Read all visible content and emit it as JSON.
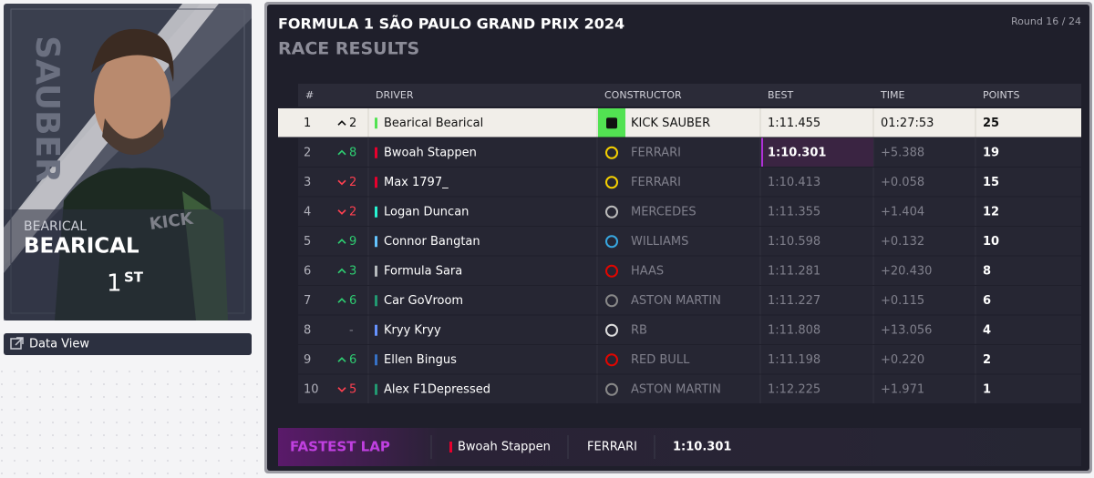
{
  "card": {
    "team": "SAUBER",
    "first_name": "BEARICAL",
    "last_name": "BEARICAL",
    "position": "1",
    "position_suffix": "ST"
  },
  "button": "Data View",
  "header": {
    "title": "FORMULA 1 SÃO PAULO GRAND PRIX 2024",
    "subtitle": "RACE RESULTS",
    "round": "Round 16 / 24"
  },
  "table": {
    "columns": [
      "#",
      "DRIVER",
      "CONSTRUCTOR",
      "BEST",
      "TIME",
      "POINTS"
    ],
    "rows": [
      {
        "pos": 1,
        "change": "2",
        "direction": "up",
        "driver": "Bearical Bearical",
        "team_color": "#52e252",
        "constructor": "KICK SAUBER",
        "logo_color": "#52e252",
        "best": "1:11.455",
        "time": "01:27:53",
        "points": 25,
        "player": true
      },
      {
        "pos": 2,
        "change": "8",
        "direction": "up",
        "driver": "Bwoah Stappen",
        "team_color": "#e8002d",
        "constructor": "FERRARI",
        "logo_color": "#f5d000",
        "best": "1:10.301",
        "time": "+5.388",
        "points": 19,
        "fastest": true
      },
      {
        "pos": 3,
        "change": "2",
        "direction": "down",
        "driver": "Max 1797_",
        "team_color": "#e8002d",
        "constructor": "FERRARI",
        "logo_color": "#f5d000",
        "best": "1:10.413",
        "time": "+0.058",
        "points": 15
      },
      {
        "pos": 4,
        "change": "2",
        "direction": "down",
        "driver": "Logan Duncan",
        "team_color": "#27f4d2",
        "constructor": "MERCEDES",
        "logo_color": "#bbbbbb",
        "best": "1:11.355",
        "time": "+1.404",
        "points": 12
      },
      {
        "pos": 5,
        "change": "9",
        "direction": "up",
        "driver": "Connor Bangtan",
        "team_color": "#64c4ff",
        "constructor": "WILLIAMS",
        "logo_color": "#37a7e0",
        "best": "1:10.598",
        "time": "+0.132",
        "points": 10
      },
      {
        "pos": 6,
        "change": "3",
        "direction": "up",
        "driver": "Formula Sara",
        "team_color": "#b6babd",
        "constructor": "HAAS",
        "logo_color": "#e10600",
        "best": "1:11.281",
        "time": "+20.430",
        "points": 8
      },
      {
        "pos": 7,
        "change": "6",
        "direction": "up",
        "driver": "Car GoVroom",
        "team_color": "#229971",
        "constructor": "ASTON MARTIN",
        "logo_color": "#888888",
        "best": "1:11.227",
        "time": "+0.115",
        "points": 6
      },
      {
        "pos": 8,
        "change": "-",
        "direction": "none",
        "driver": "Kryy Kryy",
        "team_color": "#6692ff",
        "constructor": "RB",
        "logo_color": "#dddddd",
        "best": "1:11.808",
        "time": "+13.056",
        "points": 4
      },
      {
        "pos": 9,
        "change": "6",
        "direction": "up",
        "driver": "Ellen Bingus",
        "team_color": "#3671c6",
        "constructor": "RED BULL",
        "logo_color": "#e10600",
        "best": "1:11.198",
        "time": "+0.220",
        "points": 2
      },
      {
        "pos": 10,
        "change": "5",
        "direction": "down",
        "driver": "Alex F1Depressed",
        "team_color": "#229971",
        "constructor": "ASTON MARTIN",
        "logo_color": "#888888",
        "best": "1:12.225",
        "time": "+1.971",
        "points": 1
      }
    ]
  },
  "fastest_lap": {
    "label": "FASTEST LAP",
    "driver": "Bwoah Stappen",
    "team_color": "#e8002d",
    "constructor": "FERRARI",
    "time": "1:10.301"
  }
}
